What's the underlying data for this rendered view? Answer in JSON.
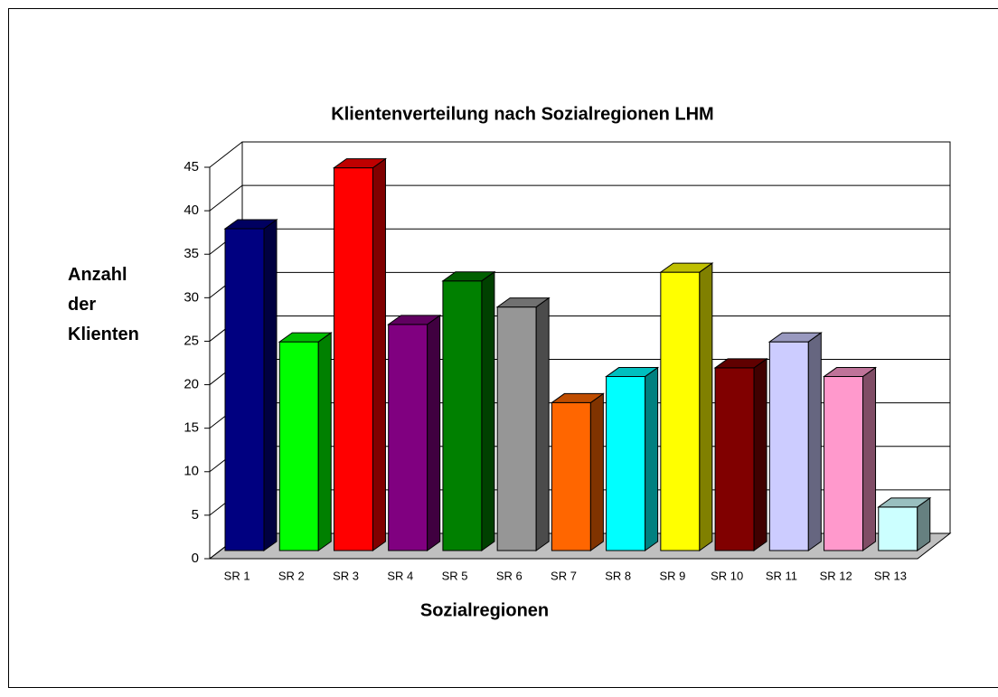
{
  "chart_data": {
    "type": "bar3d",
    "title": "Klientenverteilung nach Sozialregionen LHM",
    "x_label": "Sozialregionen",
    "y_label": "Anzahl der Klienten",
    "categories": [
      "SR 1",
      "SR 2",
      "SR 3",
      "SR 4",
      "SR 5",
      "SR 6",
      "SR 7",
      "SR 8",
      "SR 9",
      "SR 10",
      "SR 11",
      "SR 12",
      "SR 13"
    ],
    "values": [
      37,
      24,
      44,
      26,
      31,
      28,
      17,
      20,
      32,
      21,
      24,
      20,
      5
    ],
    "colors": [
      "#000080",
      "#00ff00",
      "#ff0000",
      "#800080",
      "#008000",
      "#969696",
      "#ff6600",
      "#00ffff",
      "#ffff00",
      "#800000",
      "#ccccff",
      "#ff99cc",
      "#ccffff"
    ],
    "ylim": [
      0,
      45
    ],
    "yticks": [
      0,
      5,
      10,
      15,
      20,
      25,
      30,
      35,
      40,
      45
    ],
    "grid": true
  }
}
